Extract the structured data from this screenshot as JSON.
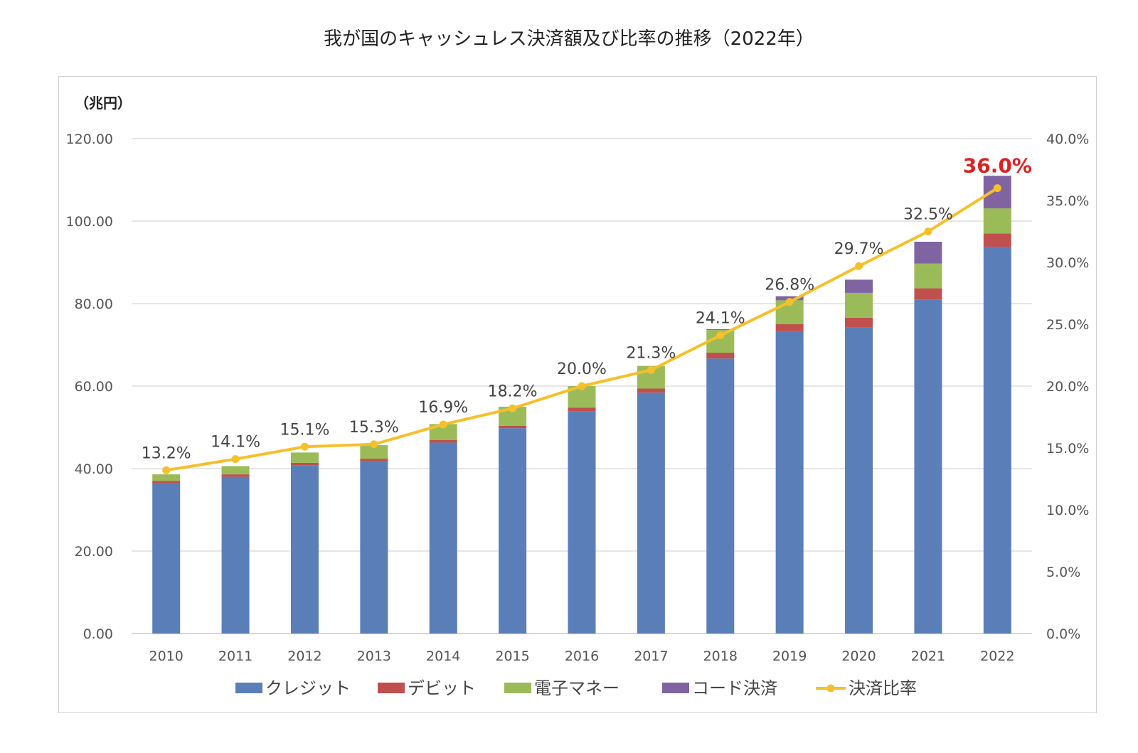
{
  "page_title": "我が国のキャッシュレス決済額及び比率の推移（2022年）",
  "chart_data": {
    "type": "bar",
    "stacked": true,
    "title": "我が国のキャッシュレス決済額及び比率の推移（2022年）",
    "ylabel": "（兆円）",
    "y2label": "",
    "categories": [
      "2010",
      "2011",
      "2012",
      "2013",
      "2014",
      "2015",
      "2016",
      "2017",
      "2018",
      "2019",
      "2020",
      "2021",
      "2022"
    ],
    "ylim": [
      0,
      120
    ],
    "y_ticks": [
      "0.00",
      "20.00",
      "40.00",
      "60.00",
      "80.00",
      "100.00",
      "120.00"
    ],
    "y2lim": [
      0,
      40
    ],
    "y2_ticks": [
      "0.0%",
      "5.0%",
      "10.0%",
      "15.0%",
      "20.0%",
      "25.0%",
      "30.0%",
      "35.0%",
      "40.0%"
    ],
    "grid": true,
    "legend_position": "bottom",
    "series": [
      {
        "name": "クレジット",
        "color": "#5a7fb8",
        "values": [
          36.4,
          38.0,
          40.8,
          41.8,
          46.3,
          49.8,
          53.9,
          58.4,
          66.7,
          73.3,
          74.2,
          81.0,
          93.8
        ]
      },
      {
        "name": "デビット",
        "color": "#c0504d",
        "values": [
          0.6,
          0.6,
          0.6,
          0.6,
          0.6,
          0.6,
          0.9,
          1.0,
          1.4,
          1.7,
          2.4,
          2.7,
          3.2
        ]
      },
      {
        "name": "電子マネー",
        "color": "#9bbb59",
        "values": [
          1.6,
          2.0,
          2.5,
          3.3,
          3.9,
          4.6,
          5.2,
          5.5,
          5.5,
          5.8,
          6.0,
          6.0,
          6.1
        ]
      },
      {
        "name": "コード決済",
        "color": "#8064a2",
        "values": [
          0,
          0,
          0,
          0,
          0,
          0,
          0,
          0,
          0.2,
          1.0,
          3.2,
          5.3,
          7.9
        ]
      }
    ],
    "line_series": {
      "name": "決済比率",
      "color": "#f5c02a",
      "axis": "right",
      "values": [
        13.2,
        14.1,
        15.1,
        15.3,
        16.9,
        18.2,
        20.0,
        21.3,
        24.1,
        26.8,
        29.7,
        32.5,
        36.0
      ],
      "labels": [
        "13.2%",
        "14.1%",
        "15.1%",
        "15.3%",
        "16.9%",
        "18.2%",
        "20.0%",
        "21.3%",
        "24.1%",
        "26.8%",
        "29.7%",
        "32.5%",
        "36.0%"
      ],
      "highlight_color": "#e02020"
    }
  }
}
